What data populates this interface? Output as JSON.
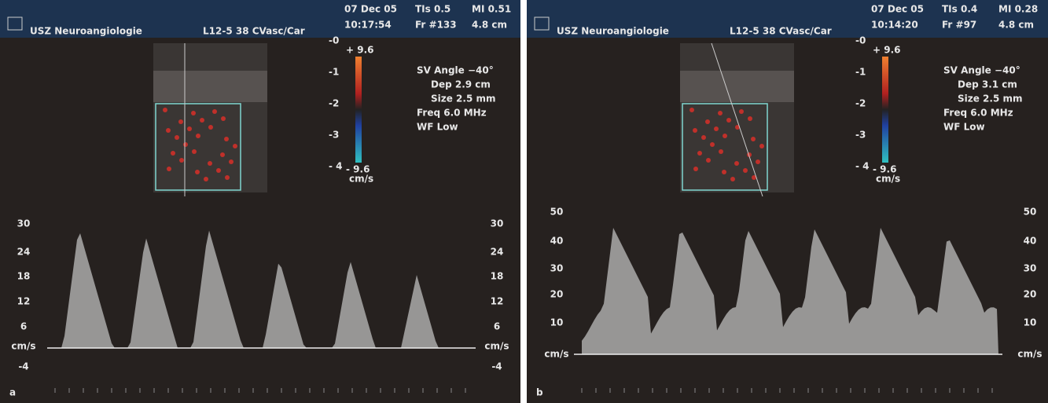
{
  "panels": [
    {
      "label": "a",
      "header": {
        "institution": "USZ Neuroangiologie",
        "probe": "L12-5 38 CVasc/Car",
        "date": "07 Dec 05",
        "time": "10:17:54",
        "tis": "TIs 0.5",
        "mi": "MI 0.51",
        "frame": "Fr #133",
        "depth": "4.8 cm"
      },
      "depth_scale": [
        "-0",
        "-1",
        "-2",
        "-3",
        "- 4"
      ],
      "color_bar": {
        "max": "+ 9.6",
        "min": "- 9.6",
        "unit": "cm/s"
      },
      "parameters": [
        "SV Angle −40°",
        "Dep 2.9  cm",
        "Size 2.5  mm",
        "Freq 6.0  MHz",
        "WF Low"
      ],
      "spectrum": {
        "left_ticks": [
          "30",
          "24",
          "18",
          "12",
          "6",
          "cm/s",
          "-4"
        ],
        "right_ticks": [
          "30",
          "24",
          "18",
          "12",
          "6",
          "cm/s",
          "-4"
        ]
      }
    },
    {
      "label": "b",
      "header": {
        "institution": "USZ Neuroangiologie",
        "probe": "L12-5 38 CVasc/Car",
        "date": "07 Dec 05",
        "time": "10:14:20",
        "tis": "TIs 0.4",
        "mi": "MI 0.28",
        "frame": "Fr #97",
        "depth": "4.8 cm"
      },
      "depth_scale": [
        "-0",
        "-1",
        "-2",
        "-3",
        "- 4"
      ],
      "color_bar": {
        "max": "+ 9.6",
        "min": "- 9.6",
        "unit": "cm/s"
      },
      "parameters": [
        "SV Angle −40°",
        "Dep 3.1  cm",
        "Size 2.5  mm",
        "Freq 6.0  MHz",
        "WF Low"
      ],
      "spectrum": {
        "left_ticks": [
          "50",
          "40",
          "30",
          "20",
          "10",
          "cm/s"
        ],
        "right_ticks": [
          "50",
          "40",
          "30",
          "20",
          "10",
          "cm/s"
        ]
      }
    }
  ]
}
